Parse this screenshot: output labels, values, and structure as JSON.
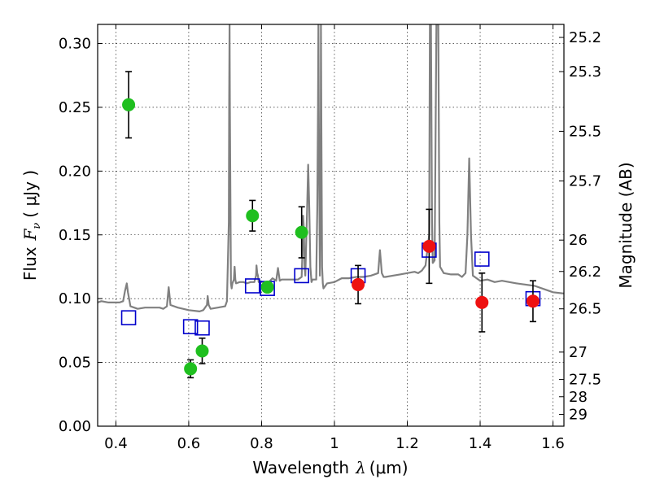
{
  "chart_data": {
    "type": "scatter",
    "xlabel": "Wavelength",
    "xlabel_symbol": "λ",
    "xlabel_unit": "(μm)",
    "ylabel": "Flux",
    "ylabel_symbol": "F",
    "ylabel_subscript": "ν",
    "ylabel_unit": "( μJy )",
    "y2label": "Magnitude (AB)",
    "xlim": [
      0.35,
      1.63
    ],
    "ylim": [
      0.0,
      0.315
    ],
    "grid": true,
    "xticks": [
      0.4,
      0.6,
      0.8,
      1.0,
      1.2,
      1.4,
      1.6
    ],
    "xtick_labels": [
      "0.4",
      "0.6",
      "0.8",
      "1",
      "1.2",
      "1.4",
      "1.6"
    ],
    "yticks": [
      0.0,
      0.05,
      0.1,
      0.15,
      0.2,
      0.25,
      0.3
    ],
    "ytick_labels": [
      "0.00",
      "0.05",
      "0.10",
      "0.15",
      "0.20",
      "0.25",
      "0.30"
    ],
    "y2ticks": [
      {
        "label": "25.2",
        "flux": 0.3048
      },
      {
        "label": "25.3",
        "flux": 0.278
      },
      {
        "label": "25.5",
        "flux": 0.2312
      },
      {
        "label": "25.7",
        "flux": 0.1923
      },
      {
        "label": "26",
        "flux": 0.1459
      },
      {
        "label": "26.2",
        "flux": 0.1213
      },
      {
        "label": "26.5",
        "flux": 0.092
      },
      {
        "label": "27",
        "flux": 0.0581
      },
      {
        "label": "27.5",
        "flux": 0.0366
      },
      {
        "label": "28",
        "flux": 0.0231
      },
      {
        "label": "29",
        "flux": 0.0092
      }
    ],
    "colors": {
      "green": "#1fbf1f",
      "red": "#ee1111",
      "blue": "#0000cc",
      "model": "#808080"
    },
    "series": [
      {
        "marker": "filled-circle",
        "color": "#1fbf1f",
        "points": [
          {
            "x": 0.435,
            "y": 0.252,
            "err": 0.026
          },
          {
            "x": 0.605,
            "y": 0.045,
            "err": 0.007
          },
          {
            "x": 0.637,
            "y": 0.059,
            "err": 0.01
          },
          {
            "x": 0.775,
            "y": 0.165,
            "err": 0.012
          },
          {
            "x": 0.816,
            "y": 0.109,
            "err": null
          },
          {
            "x": 0.91,
            "y": 0.152,
            "err": 0.02
          }
        ]
      },
      {
        "marker": "filled-circle",
        "color": "#ee1111",
        "points": [
          {
            "x": 1.065,
            "y": 0.111,
            "err": 0.015
          },
          {
            "x": 1.26,
            "y": 0.141,
            "err": 0.029
          },
          {
            "x": 1.405,
            "y": 0.097,
            "err": 0.023
          },
          {
            "x": 1.545,
            "y": 0.098,
            "err": 0.016
          }
        ]
      },
      {
        "marker": "open-square",
        "color": "#0000cc",
        "points": [
          {
            "x": 0.435,
            "y": 0.085
          },
          {
            "x": 0.605,
            "y": 0.078
          },
          {
            "x": 0.637,
            "y": 0.077
          },
          {
            "x": 0.775,
            "y": 0.11
          },
          {
            "x": 0.816,
            "y": 0.108
          },
          {
            "x": 0.91,
            "y": 0.118
          },
          {
            "x": 1.065,
            "y": 0.118
          },
          {
            "x": 1.26,
            "y": 0.138
          },
          {
            "x": 1.405,
            "y": 0.131
          },
          {
            "x": 1.545,
            "y": 0.1
          }
        ]
      },
      {
        "type": "line",
        "marker": "none",
        "color": "#808080",
        "x": [
          0.35,
          0.36,
          0.38,
          0.4,
          0.41,
          0.42,
          0.425,
          0.43,
          0.433,
          0.44,
          0.46,
          0.48,
          0.5,
          0.52,
          0.53,
          0.54,
          0.545,
          0.55,
          0.57,
          0.6,
          0.63,
          0.64,
          0.65,
          0.652,
          0.655,
          0.66,
          0.68,
          0.7,
          0.705,
          0.71,
          0.711,
          0.712,
          0.713,
          0.716,
          0.718,
          0.72,
          0.724,
          0.726,
          0.728,
          0.73,
          0.74,
          0.75,
          0.76,
          0.77,
          0.78,
          0.785,
          0.786,
          0.788,
          0.79,
          0.792,
          0.795,
          0.8,
          0.82,
          0.83,
          0.84,
          0.845,
          0.85,
          0.855,
          0.86,
          0.88,
          0.9,
          0.91,
          0.912,
          0.914,
          0.916,
          0.918,
          0.92,
          0.925,
          0.928,
          0.931,
          0.934,
          0.937,
          0.94,
          0.945,
          0.95,
          0.953,
          0.955,
          0.956,
          0.957,
          0.96,
          0.962,
          0.963,
          0.964,
          0.966,
          0.968,
          0.97,
          0.98,
          1.0,
          1.02,
          1.04,
          1.06,
          1.08,
          1.1,
          1.12,
          1.125,
          1.13,
          1.135,
          1.14,
          1.16,
          1.18,
          1.2,
          1.22,
          1.23,
          1.24,
          1.25,
          1.26,
          1.262,
          1.265,
          1.268,
          1.27,
          1.275,
          1.28,
          1.282,
          1.285,
          1.288,
          1.29,
          1.3,
          1.32,
          1.34,
          1.35,
          1.36,
          1.365,
          1.37,
          1.375,
          1.38,
          1.4,
          1.42,
          1.44,
          1.46,
          1.5,
          1.55,
          1.58,
          1.6,
          1.63
        ],
        "y": [
          0.097,
          0.098,
          0.097,
          0.097,
          0.097,
          0.098,
          0.106,
          0.112,
          0.105,
          0.094,
          0.092,
          0.093,
          0.093,
          0.093,
          0.092,
          0.094,
          0.109,
          0.095,
          0.093,
          0.091,
          0.09,
          0.091,
          0.095,
          0.102,
          0.095,
          0.092,
          0.093,
          0.094,
          0.098,
          0.16,
          0.25,
          0.315,
          0.25,
          0.112,
          0.108,
          0.112,
          0.115,
          0.125,
          0.115,
          0.112,
          0.113,
          0.113,
          0.112,
          0.113,
          0.113,
          0.118,
          0.126,
          0.12,
          0.118,
          0.113,
          0.114,
          0.113,
          0.113,
          0.116,
          0.114,
          0.124,
          0.114,
          0.115,
          0.115,
          0.115,
          0.115,
          0.117,
          0.135,
          0.165,
          0.155,
          0.125,
          0.118,
          0.17,
          0.205,
          0.17,
          0.125,
          0.113,
          0.115,
          0.115,
          0.115,
          0.17,
          0.25,
          0.315,
          0.25,
          0.118,
          0.18,
          0.315,
          0.24,
          0.125,
          0.112,
          0.108,
          0.112,
          0.113,
          0.116,
          0.116,
          0.117,
          0.117,
          0.118,
          0.12,
          0.138,
          0.12,
          0.117,
          0.117,
          0.118,
          0.119,
          0.12,
          0.121,
          0.12,
          0.122,
          0.126,
          0.15,
          0.315,
          0.315,
          0.16,
          0.128,
          0.13,
          0.315,
          0.315,
          0.315,
          0.16,
          0.125,
          0.12,
          0.119,
          0.119,
          0.117,
          0.12,
          0.15,
          0.21,
          0.15,
          0.118,
          0.114,
          0.115,
          0.113,
          0.114,
          0.112,
          0.11,
          0.107,
          0.105,
          0.104
        ]
      }
    ]
  }
}
